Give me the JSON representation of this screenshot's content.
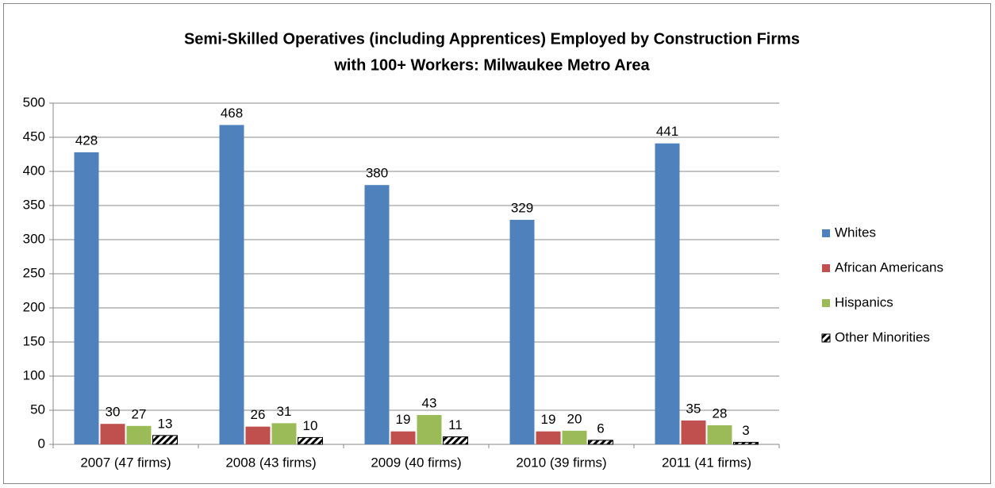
{
  "chart_data": {
    "type": "bar",
    "title": [
      "Semi-Skilled Operatives (including Apprentices) Employed by Construction Firms",
      "with 100+ Workers: Milwaukee Metro Area"
    ],
    "categories": [
      "2007 (47 firms)",
      "2008 (43 firms)",
      "2009 (40 firms)",
      "2010 (39 firms)",
      "2011 (41 firms)"
    ],
    "series": [
      {
        "name": "Whites",
        "color": "#4f81bd",
        "values": [
          428,
          468,
          380,
          329,
          441
        ]
      },
      {
        "name": "African Americans",
        "color": "#c0504d",
        "values": [
          30,
          26,
          19,
          19,
          35
        ]
      },
      {
        "name": "Hispanics",
        "color": "#9bbb59",
        "values": [
          27,
          31,
          43,
          20,
          28
        ]
      },
      {
        "name": "Other Minorities",
        "color": "#000000",
        "pattern": "hatch",
        "values": [
          13,
          10,
          11,
          6,
          3
        ]
      }
    ],
    "ylim": [
      0,
      500
    ],
    "yticks": [
      0,
      50,
      100,
      150,
      200,
      250,
      300,
      350,
      400,
      450,
      500
    ],
    "grid": true,
    "legend": "right"
  }
}
